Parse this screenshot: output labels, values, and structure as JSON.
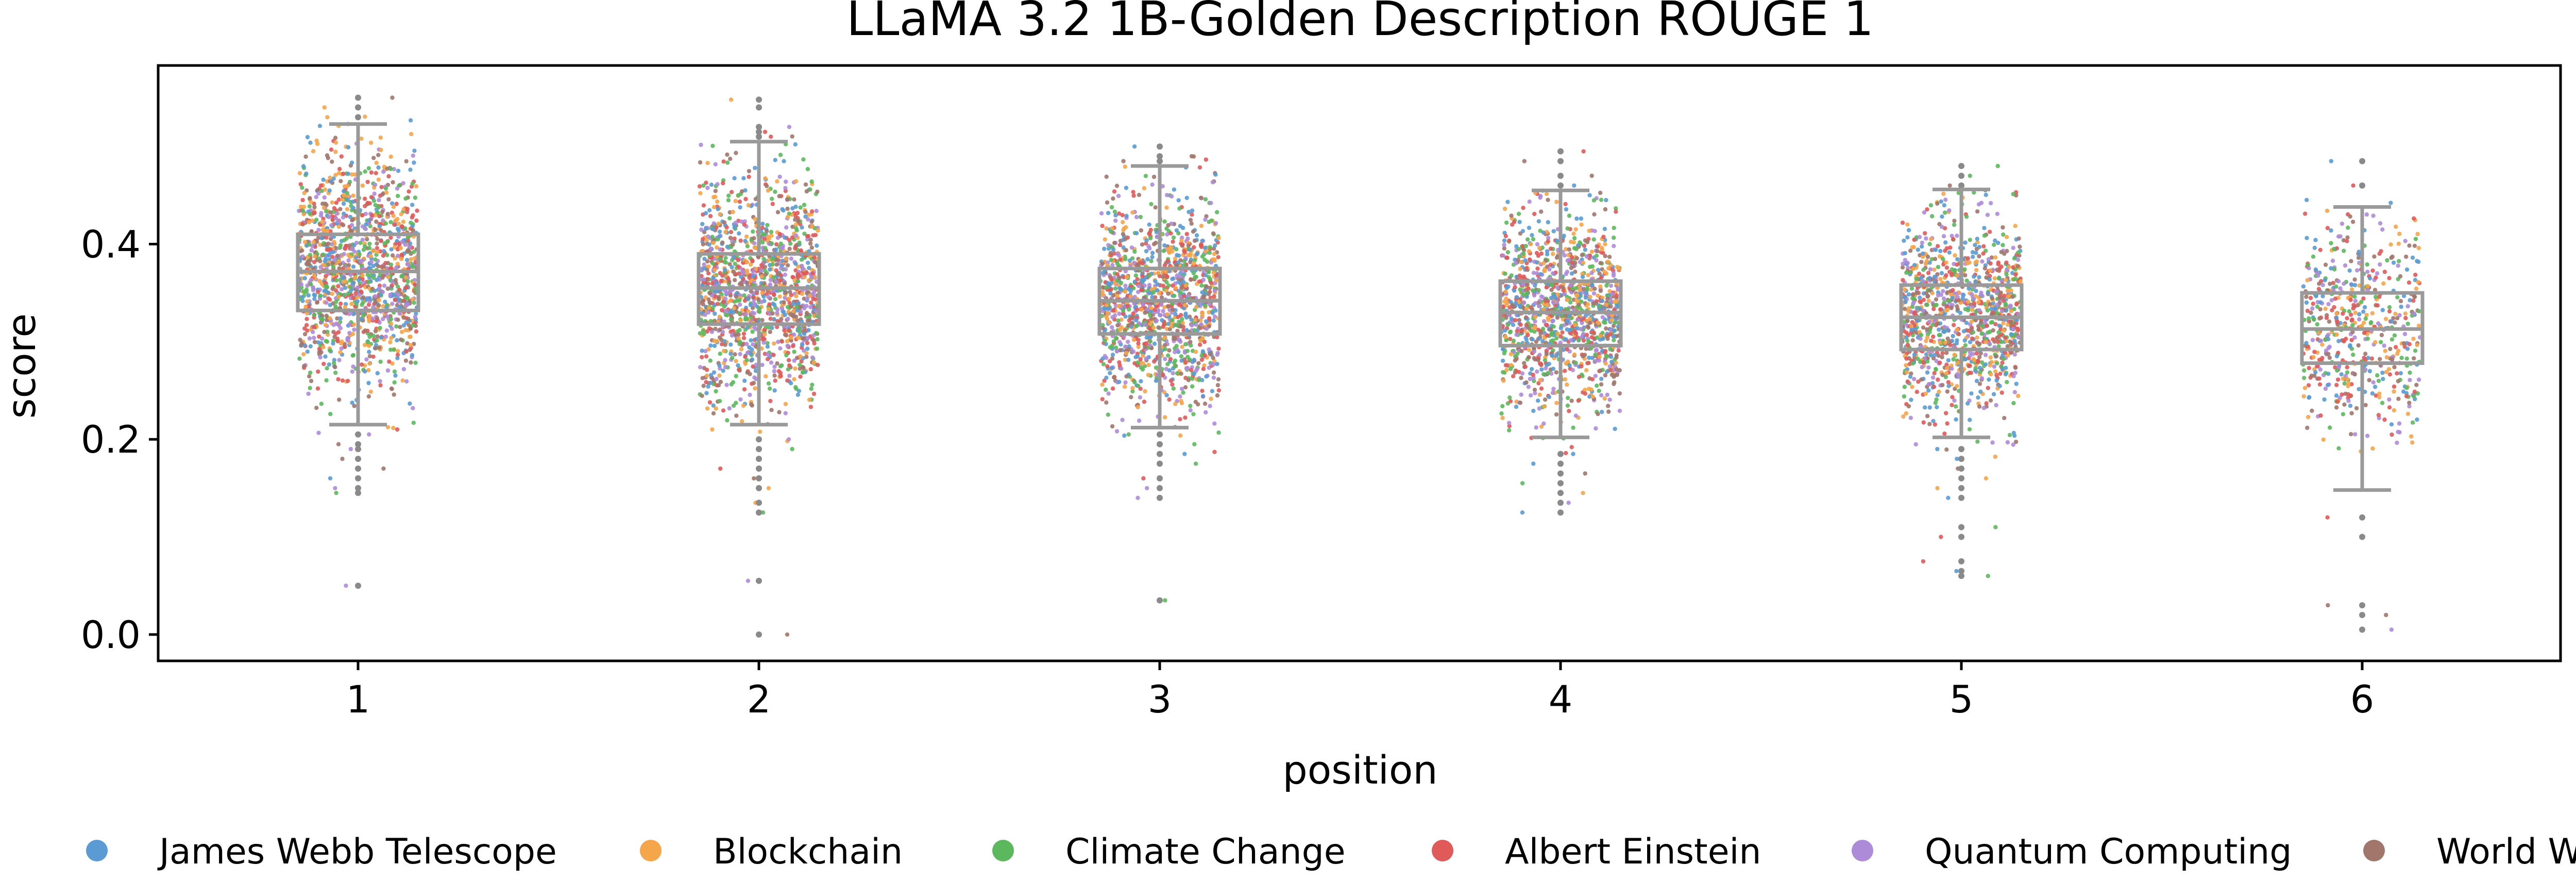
{
  "chart_data": {
    "type": "box-strip",
    "title": "LLaMA 3.2 1B-Golden Description ROUGE 1",
    "xlabel": "position",
    "ylabel": "score",
    "categories": [
      "1",
      "2",
      "3",
      "4",
      "5",
      "6"
    ],
    "ylim": [
      -0.027,
      0.583
    ],
    "yticks": [
      0.0,
      0.2,
      0.4
    ],
    "ytick_labels": [
      "0.0",
      "0.2",
      "0.4"
    ],
    "grid": false,
    "legend_position": "bottom",
    "series": [
      {
        "name": "James Webb Telescope",
        "color": "#5a9bd4"
      },
      {
        "name": "Blockchain",
        "color": "#f5a54a"
      },
      {
        "name": "Climate Change",
        "color": "#5cb85c"
      },
      {
        "name": "Albert Einstein",
        "color": "#e05a5a"
      },
      {
        "name": "Quantum Computing",
        "color": "#ae8bd8"
      },
      {
        "name": "World War II",
        "color": "#a1776b"
      }
    ],
    "boxes": [
      {
        "position": "1",
        "whisker_low": 0.215,
        "q1": 0.332,
        "median": 0.372,
        "q3": 0.41,
        "whisker_high": 0.523,
        "outliers": [
          0.05,
          0.145,
          0.15,
          0.16,
          0.17,
          0.18,
          0.19,
          0.195,
          0.205,
          0.53,
          0.54,
          0.55
        ],
        "n": 1400
      },
      {
        "position": "2",
        "whisker_low": 0.215,
        "q1": 0.318,
        "median": 0.355,
        "q3": 0.39,
        "whisker_high": 0.505,
        "outliers": [
          0.0,
          0.055,
          0.125,
          0.135,
          0.15,
          0.16,
          0.17,
          0.18,
          0.19,
          0.2,
          0.51,
          0.515,
          0.52,
          0.54,
          0.548
        ],
        "n": 1400
      },
      {
        "position": "3",
        "whisker_low": 0.212,
        "q1": 0.308,
        "median": 0.342,
        "q3": 0.375,
        "whisker_high": 0.48,
        "outliers": [
          0.035,
          0.14,
          0.15,
          0.16,
          0.175,
          0.185,
          0.195,
          0.205,
          0.485,
          0.49,
          0.5
        ],
        "n": 1300
      },
      {
        "position": "4",
        "whisker_low": 0.202,
        "q1": 0.296,
        "median": 0.33,
        "q3": 0.362,
        "whisker_high": 0.455,
        "outliers": [
          0.125,
          0.135,
          0.145,
          0.155,
          0.165,
          0.175,
          0.185,
          0.46,
          0.47,
          0.485,
          0.495
        ],
        "n": 1250
      },
      {
        "position": "5",
        "whisker_low": 0.202,
        "q1": 0.292,
        "median": 0.325,
        "q3": 0.358,
        "whisker_high": 0.456,
        "outliers": [
          0.06,
          0.065,
          0.075,
          0.1,
          0.11,
          0.14,
          0.15,
          0.16,
          0.17,
          0.18,
          0.19,
          0.46,
          0.47,
          0.48
        ],
        "n": 1150
      },
      {
        "position": "6",
        "whisker_low": 0.148,
        "q1": 0.278,
        "median": 0.313,
        "q3": 0.35,
        "whisker_high": 0.438,
        "outliers": [
          0.005,
          0.02,
          0.03,
          0.1,
          0.12,
          0.46,
          0.485
        ],
        "n": 550
      }
    ]
  }
}
